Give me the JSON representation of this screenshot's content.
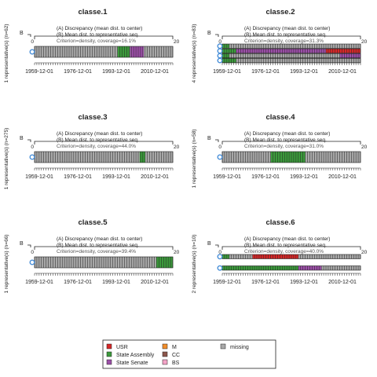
{
  "chart_data": [
    {
      "type": "sequence-representative",
      "title": "classe.1",
      "ylabel": "1 representative(s) (n=62)",
      "x_tick_labels": [
        "1959-12-01",
        "1976-12-01",
        "1993-12-01",
        "2010-12-01"
      ],
      "legend_lines": [
        "(A) Discrepancy (mean dist. to center)",
        "(B) Mean dist. to representative seq."
      ],
      "coverage_text": "Criterion=density, coverage=16.1%",
      "scale_max_label": "20",
      "segments": [
        {
          "row": 0,
          "state": "missing",
          "start": 0.0,
          "end": 0.6
        },
        {
          "row": 0,
          "state": "State Assembly",
          "start": 0.6,
          "end": 0.69
        },
        {
          "row": 0,
          "state": "State Senate",
          "start": 0.69,
          "end": 0.79
        },
        {
          "row": 0,
          "state": "missing",
          "start": 0.79,
          "end": 1.0
        }
      ]
    },
    {
      "type": "sequence-representative",
      "title": "classe.2",
      "ylabel": "4 representative(s) (n=83)",
      "x_tick_labels": [
        "1959-12-01",
        "1976-12-01",
        "1993-12-01",
        "2010-12-01"
      ],
      "legend_lines": [
        "(A) Discrepancy (mean dist. to center)",
        "(B) Mean dist. to representative seq."
      ],
      "coverage_text": "Criterion=density, coverage=31.3%",
      "scale_max_label": "20",
      "segments": [
        {
          "row": 0,
          "state": "State Assembly",
          "start": 0.0,
          "end": 0.05
        },
        {
          "row": 0,
          "state": "missing",
          "start": 0.05,
          "end": 1.0
        },
        {
          "row": 1,
          "state": "State Assembly",
          "start": 0.0,
          "end": 0.1
        },
        {
          "row": 1,
          "state": "State Senate",
          "start": 0.1,
          "end": 0.75
        },
        {
          "row": 1,
          "state": "USR",
          "start": 0.75,
          "end": 1.0
        },
        {
          "row": 2,
          "state": "State Assembly",
          "start": 0.0,
          "end": 0.05
        },
        {
          "row": 2,
          "state": "missing",
          "start": 0.05,
          "end": 0.85
        },
        {
          "row": 2,
          "state": "State Senate",
          "start": 0.85,
          "end": 1.0
        },
        {
          "row": 3,
          "state": "State Assembly",
          "start": 0.0,
          "end": 0.1
        },
        {
          "row": 3,
          "state": "missing",
          "start": 0.1,
          "end": 1.0
        }
      ]
    },
    {
      "type": "sequence-representative",
      "title": "classe.3",
      "ylabel": "1 representative(s) (n=275)",
      "x_tick_labels": [
        "1959-12-01",
        "1976-12-01",
        "1993-12-01",
        "2010-12-01"
      ],
      "legend_lines": [
        "(A) Discrepancy (mean dist. to center)",
        "(B) Mean dist. to representative seq."
      ],
      "coverage_text": "Criterion=density, coverage=44.0%",
      "scale_max_label": "20",
      "segments": [
        {
          "row": 0,
          "state": "missing",
          "start": 0.0,
          "end": 0.76
        },
        {
          "row": 0,
          "state": "State Assembly",
          "start": 0.76,
          "end": 0.8
        },
        {
          "row": 0,
          "state": "missing",
          "start": 0.8,
          "end": 1.0
        }
      ]
    },
    {
      "type": "sequence-representative",
      "title": "classe.4",
      "ylabel": "1 representative(s) (n=58)",
      "x_tick_labels": [
        "1959-12-01",
        "1976-12-01",
        "1993-12-01",
        "2010-12-01"
      ],
      "legend_lines": [
        "(A) Discrepancy (mean dist. to center)",
        "(B) Mean dist. to representative seq."
      ],
      "coverage_text": "Criterion=density, coverage=31.0%",
      "scale_max_label": "20",
      "segments": [
        {
          "row": 0,
          "state": "missing",
          "start": 0.0,
          "end": 0.35
        },
        {
          "row": 0,
          "state": "State Assembly",
          "start": 0.35,
          "end": 0.6
        },
        {
          "row": 0,
          "state": "missing",
          "start": 0.6,
          "end": 1.0
        }
      ]
    },
    {
      "type": "sequence-representative",
      "title": "classe.5",
      "ylabel": "1 representative(s) (n=66)",
      "x_tick_labels": [
        "1959-12-01",
        "1976-12-01",
        "1993-12-01",
        "2010-12-01"
      ],
      "legend_lines": [
        "(A) Discrepancy (mean dist. to center)",
        "(B) Mean dist. to representative seq."
      ],
      "coverage_text": "Criterion=density, coverage=39.4%",
      "scale_max_label": "20",
      "segments": [
        {
          "row": 0,
          "state": "missing",
          "start": 0.0,
          "end": 0.88
        },
        {
          "row": 0,
          "state": "State Assembly",
          "start": 0.88,
          "end": 1.0
        }
      ]
    },
    {
      "type": "sequence-representative",
      "title": "classe.6",
      "ylabel": "2 representative(s) (n=10)",
      "x_tick_labels": [
        "1959-12-01",
        "1976-12-01",
        "1993-12-01",
        "2010-12-01"
      ],
      "legend_lines": [
        "(A) Discrepancy (mean dist. to center)",
        "(B) Mean dist. to representative seq."
      ],
      "coverage_text": "Criterion=density, coverage=40.0%",
      "scale_max_label": "20",
      "segments": [
        {
          "row": 0,
          "state": "State Assembly",
          "start": 0.0,
          "end": 0.05
        },
        {
          "row": 0,
          "state": "missing",
          "start": 0.05,
          "end": 0.22
        },
        {
          "row": 0,
          "state": "USR",
          "start": 0.22,
          "end": 0.55
        },
        {
          "row": 0,
          "state": "missing",
          "start": 0.55,
          "end": 1.0
        },
        {
          "row": 1,
          "state": "State Assembly",
          "start": 0.0,
          "end": 0.2
        },
        {
          "row": 1,
          "state": "State Assembly",
          "start": 0.2,
          "end": 0.55
        },
        {
          "row": 1,
          "state": "State Senate",
          "start": 0.55,
          "end": 0.72
        },
        {
          "row": 1,
          "state": "missing",
          "start": 0.72,
          "end": 1.0
        }
      ]
    }
  ],
  "legend": [
    {
      "label": "USR",
      "color": "#d62728"
    },
    {
      "label": "State Assembly",
      "color": "#3c9a3c"
    },
    {
      "label": "State Senate",
      "color": "#9c4fa8"
    },
    {
      "label": "M",
      "color": "#f28e2b"
    },
    {
      "label": "CC",
      "color": "#8c564b"
    },
    {
      "label": "BS",
      "color": "#f4a4c8"
    },
    {
      "label": "missing",
      "color": "#a8a8a8"
    }
  ],
  "state_colors": {
    "USR": "#d62728",
    "State Assembly": "#3c9a3c",
    "State Senate": "#9c4fa8",
    "M": "#f28e2b",
    "CC": "#8c564b",
    "BS": "#f4a4c8",
    "missing": "#a8a8a8"
  }
}
